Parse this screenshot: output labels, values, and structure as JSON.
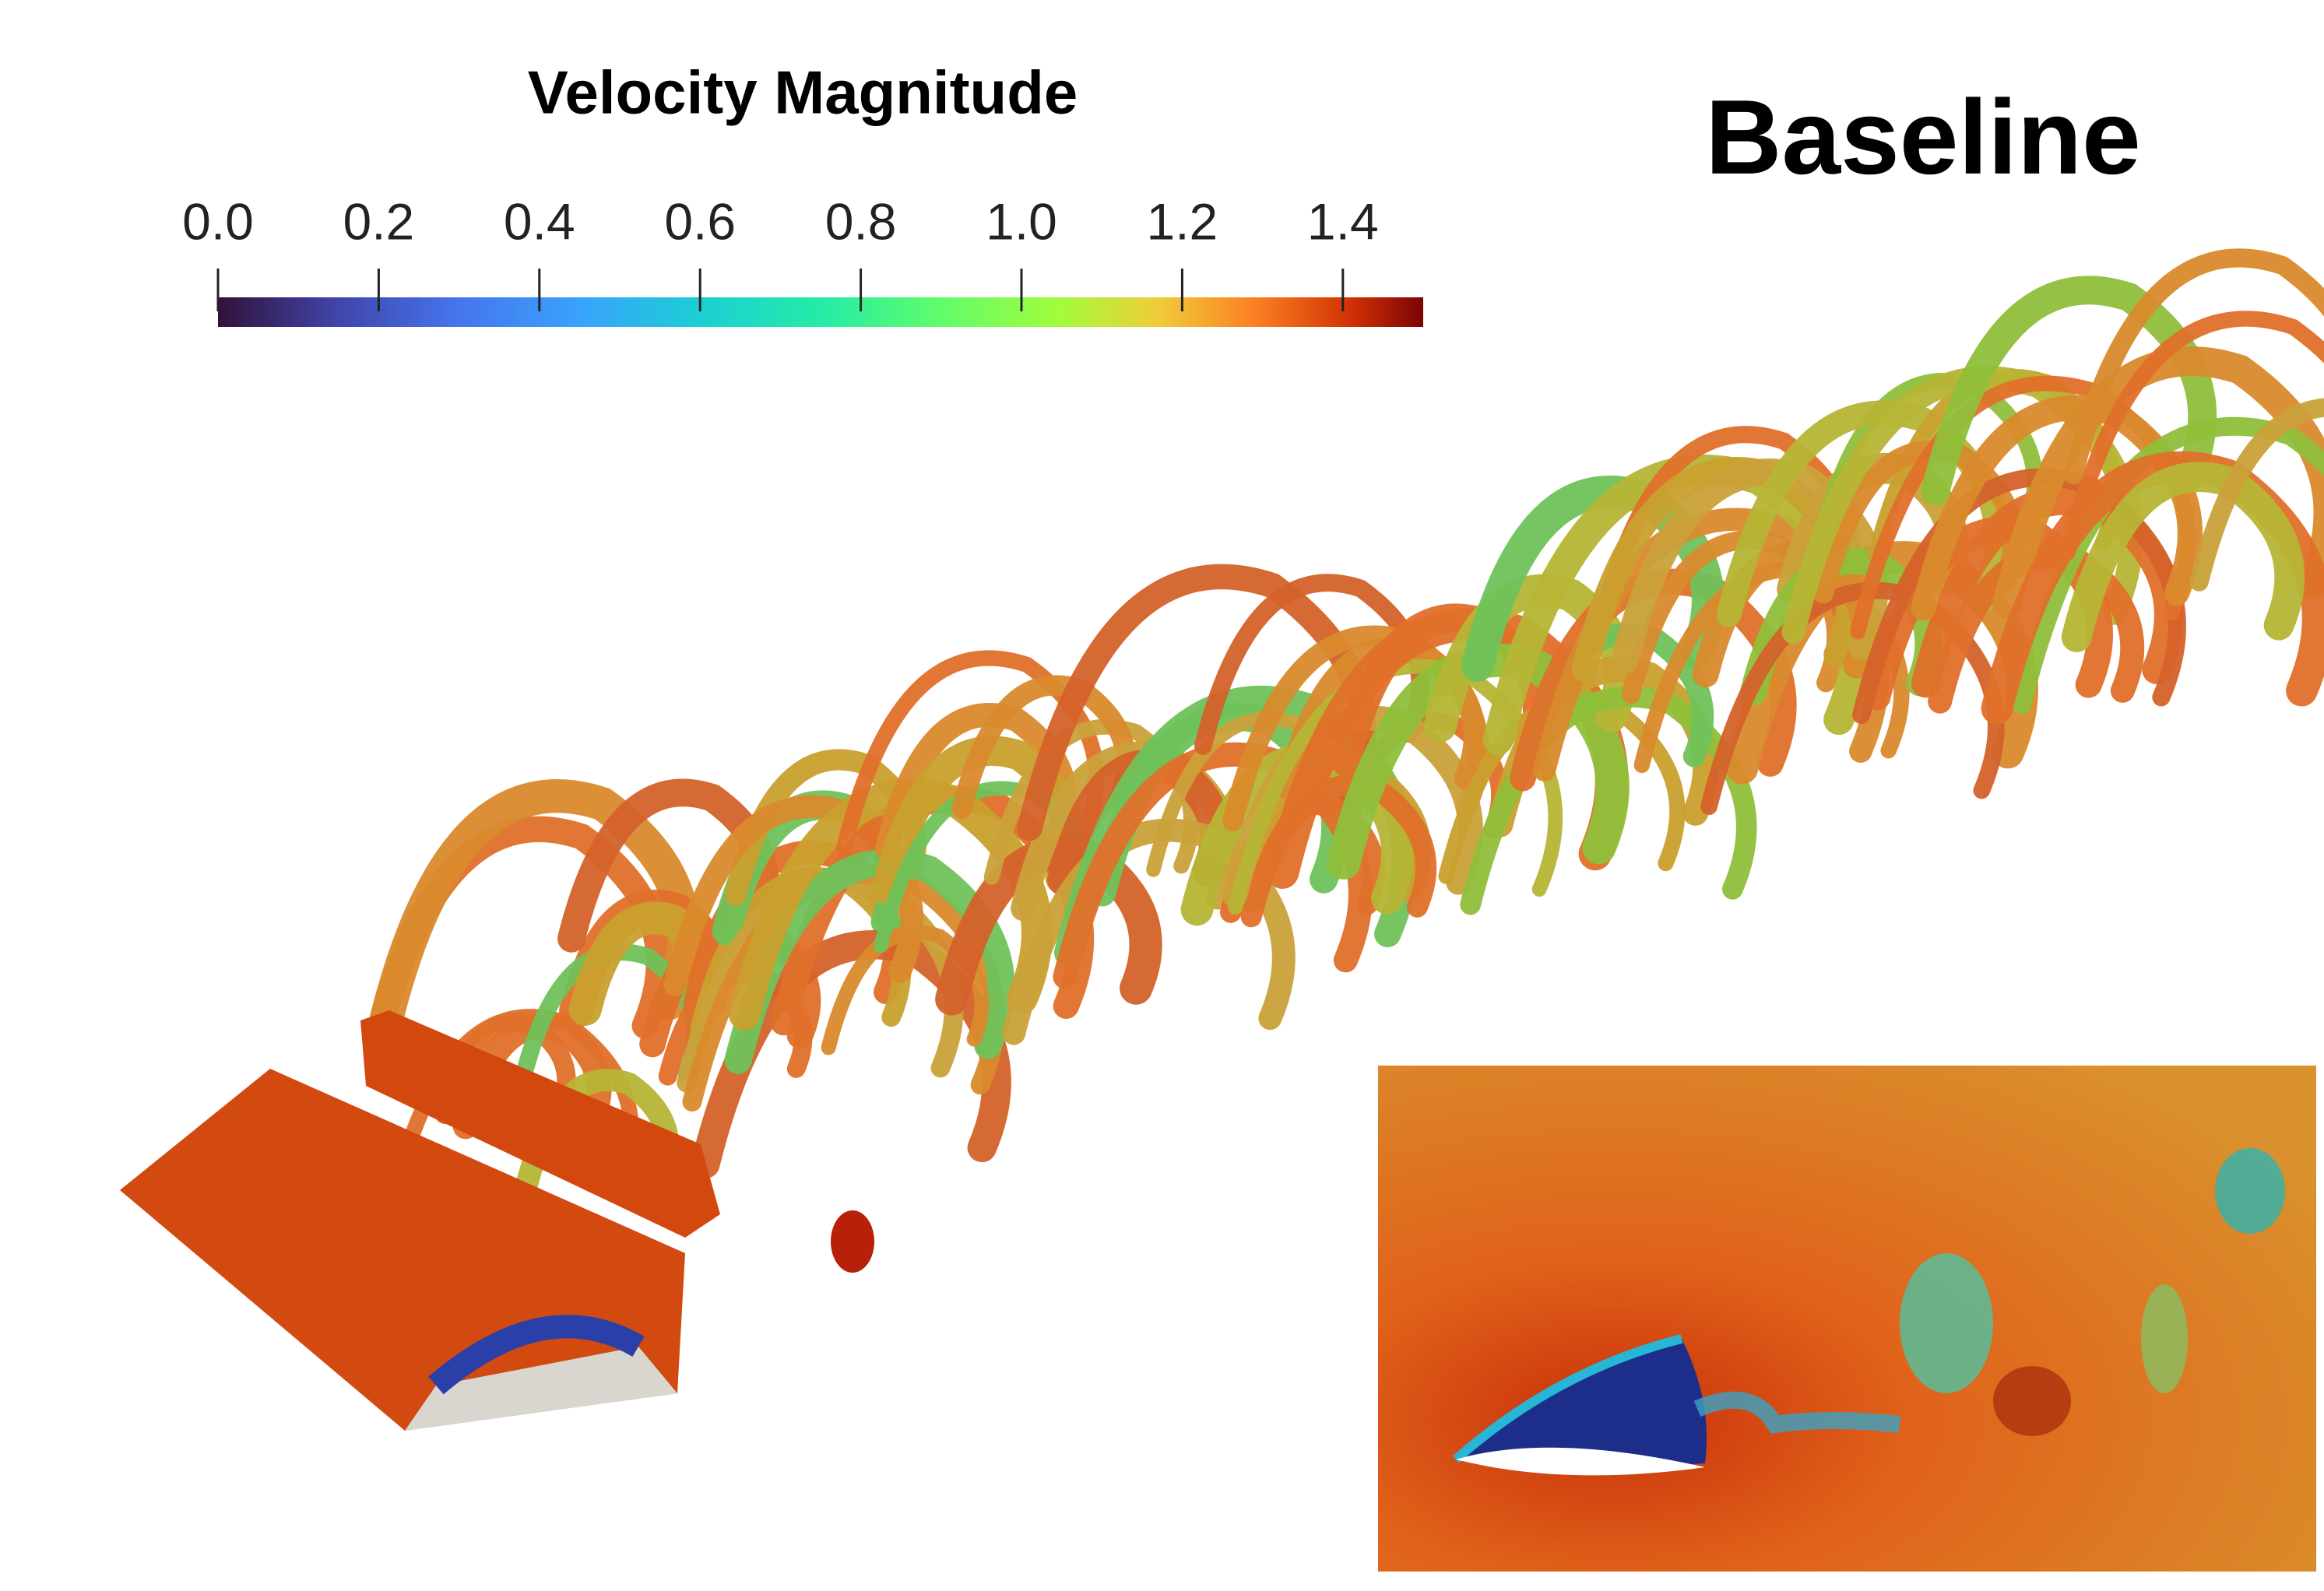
{
  "title": "Baseline",
  "colorbar": {
    "title": "Velocity Magnitude",
    "range": [
      0,
      1.5
    ],
    "ticks": [
      {
        "value": 0,
        "label": "0.0"
      },
      {
        "value": 0.2,
        "label": "0.2"
      },
      {
        "value": 0.4,
        "label": "0.4"
      },
      {
        "value": 0.6,
        "label": "0.6"
      },
      {
        "value": 0.8,
        "label": "0.8"
      },
      {
        "value": 1,
        "label": "1.0"
      },
      {
        "value": 1.2,
        "label": "1.2"
      },
      {
        "value": 1.4,
        "label": "1.4"
      }
    ]
  }
}
